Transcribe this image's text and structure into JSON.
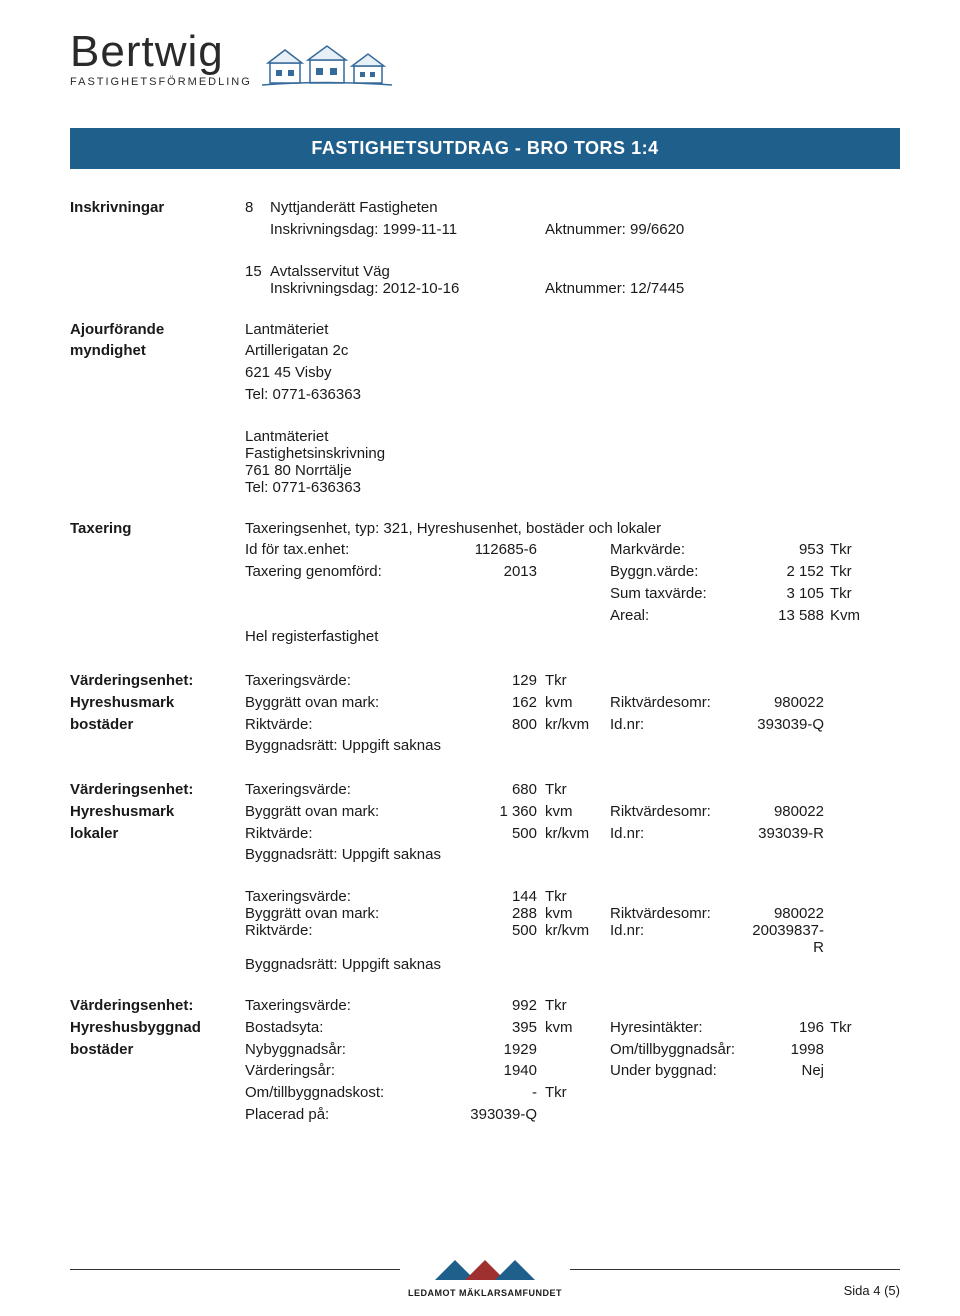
{
  "logo": {
    "main": "Bertwig",
    "sub": "FASTIGHETSFÖRMEDLING"
  },
  "banner": "FASTIGHETSUTDRAG - BRO TORS 1:4",
  "inskrivningar": {
    "label": "Inskrivningar",
    "items": [
      {
        "num": "8",
        "title": "Nyttjanderätt Fastigheten",
        "dateLabel": "Inskrivningsdag:",
        "date": "1999-11-11",
        "aktLabel": "Aktnummer:",
        "akt": "99/6620"
      },
      {
        "num": "15",
        "title": "Avtalsservitut Väg",
        "dateLabel": "Inskrivningsdag:",
        "date": "2012-10-16",
        "aktLabel": "Aktnummer:",
        "akt": "12/7445"
      }
    ]
  },
  "ajour": {
    "label1": "Ajourförande",
    "label2": "myndighet",
    "block1": [
      "Lantmäteriet",
      "Artillerigatan 2c",
      "621 45 Visby",
      "Tel: 0771-636363"
    ],
    "block2": [
      "Lantmäteriet",
      "Fastighetsinskrivning",
      "761 80 Norrtälje",
      "Tel: 0771-636363"
    ]
  },
  "taxering": {
    "label": "Taxering",
    "line1": "Taxeringsenhet, typ: 321, Hyreshusenhet, bostäder och lokaler",
    "rows": [
      {
        "c1": "Id för tax.enhet:",
        "c2": "112685-6",
        "c3": "",
        "c4": "Markvärde:",
        "c5": "953",
        "c6": "Tkr"
      },
      {
        "c1": "Taxering genomförd:",
        "c2": "2013",
        "c3": "",
        "c4": "Byggn.värde:",
        "c5": "2 152",
        "c6": "Tkr"
      },
      {
        "c1": "",
        "c2": "",
        "c3": "",
        "c4": "Sum taxvärde:",
        "c5": "3 105",
        "c6": "Tkr"
      },
      {
        "c1": "",
        "c2": "",
        "c3": "",
        "c4": "Areal:",
        "c5": "13 588",
        "c6": "Kvm"
      }
    ],
    "line2": "Hel registerfastighet"
  },
  "v1": {
    "label1": "Värderingsenhet:",
    "label2": "Hyreshusmark",
    "label3": "bostäder",
    "rows": [
      {
        "c1": "Taxeringsvärde:",
        "c2": "129",
        "c3": "Tkr",
        "c4": "",
        "c5": "",
        "c6": ""
      },
      {
        "c1": "Byggrätt ovan mark:",
        "c2": "162",
        "c3": "kvm",
        "c4": "Riktvärdesomr:",
        "c5": "980022",
        "c6": ""
      },
      {
        "c1": "Riktvärde:",
        "c2": "800",
        "c3": "kr/kvm",
        "c4": "Id.nr:",
        "c5": "393039-Q",
        "c6": ""
      }
    ],
    "line": "Byggnadsrätt: Uppgift saknas"
  },
  "v2": {
    "label1": "Värderingsenhet:",
    "label2": "Hyreshusmark",
    "label3": "lokaler",
    "rows": [
      {
        "c1": "Taxeringsvärde:",
        "c2": "680",
        "c3": "Tkr",
        "c4": "",
        "c5": "",
        "c6": ""
      },
      {
        "c1": "Byggrätt ovan mark:",
        "c2": "1 360",
        "c3": "kvm",
        "c4": "Riktvärdesomr:",
        "c5": "980022",
        "c6": ""
      },
      {
        "c1": "Riktvärde:",
        "c2": "500",
        "c3": "kr/kvm",
        "c4": "Id.nr:",
        "c5": "393039-R",
        "c6": ""
      }
    ],
    "line": "Byggnadsrätt: Uppgift saknas"
  },
  "v3": {
    "rows": [
      {
        "c1": "Taxeringsvärde:",
        "c2": "144",
        "c3": "Tkr",
        "c4": "",
        "c5": "",
        "c6": ""
      },
      {
        "c1": "Byggrätt ovan mark:",
        "c2": "288",
        "c3": "kvm",
        "c4": "Riktvärdesomr:",
        "c5": "980022",
        "c6": ""
      },
      {
        "c1": "Riktvärde:",
        "c2": "500",
        "c3": "kr/kvm",
        "c4": "Id.nr:",
        "c5": "20039837-R",
        "c6": ""
      }
    ],
    "line": "Byggnadsrätt: Uppgift saknas"
  },
  "v4": {
    "label1": "Värderingsenhet:",
    "label2": "Hyreshusbyggnad",
    "label3": "bostäder",
    "rows": [
      {
        "c1": "Taxeringsvärde:",
        "c2": "992",
        "c3": "Tkr",
        "c4": "",
        "c5": "",
        "c6": ""
      },
      {
        "c1": "Bostadsyta:",
        "c2": "395",
        "c3": "kvm",
        "c4": "Hyresintäkter:",
        "c5": "196",
        "c6": "Tkr"
      },
      {
        "c1": "Nybyggnadsår:",
        "c2": "1929",
        "c3": "",
        "c4": "Om/tillbyggnadsår:",
        "c5": "1998",
        "c6": ""
      },
      {
        "c1": "Värderingsår:",
        "c2": "1940",
        "c3": "",
        "c4": "Under byggnad:",
        "c5": "Nej",
        "c6": ""
      },
      {
        "c1": "Om/tillbyggnadskost:",
        "c2": "-",
        "c3": "Tkr",
        "c4": "",
        "c5": "",
        "c6": ""
      },
      {
        "c1": "Placerad på:",
        "c2": "393039-Q",
        "c3": "",
        "c4": "",
        "c5": "",
        "c6": ""
      }
    ]
  },
  "footer": {
    "org": "LEDAMOT MÄKLARSAMFUNDET",
    "page": "Sida 4 (5)"
  }
}
